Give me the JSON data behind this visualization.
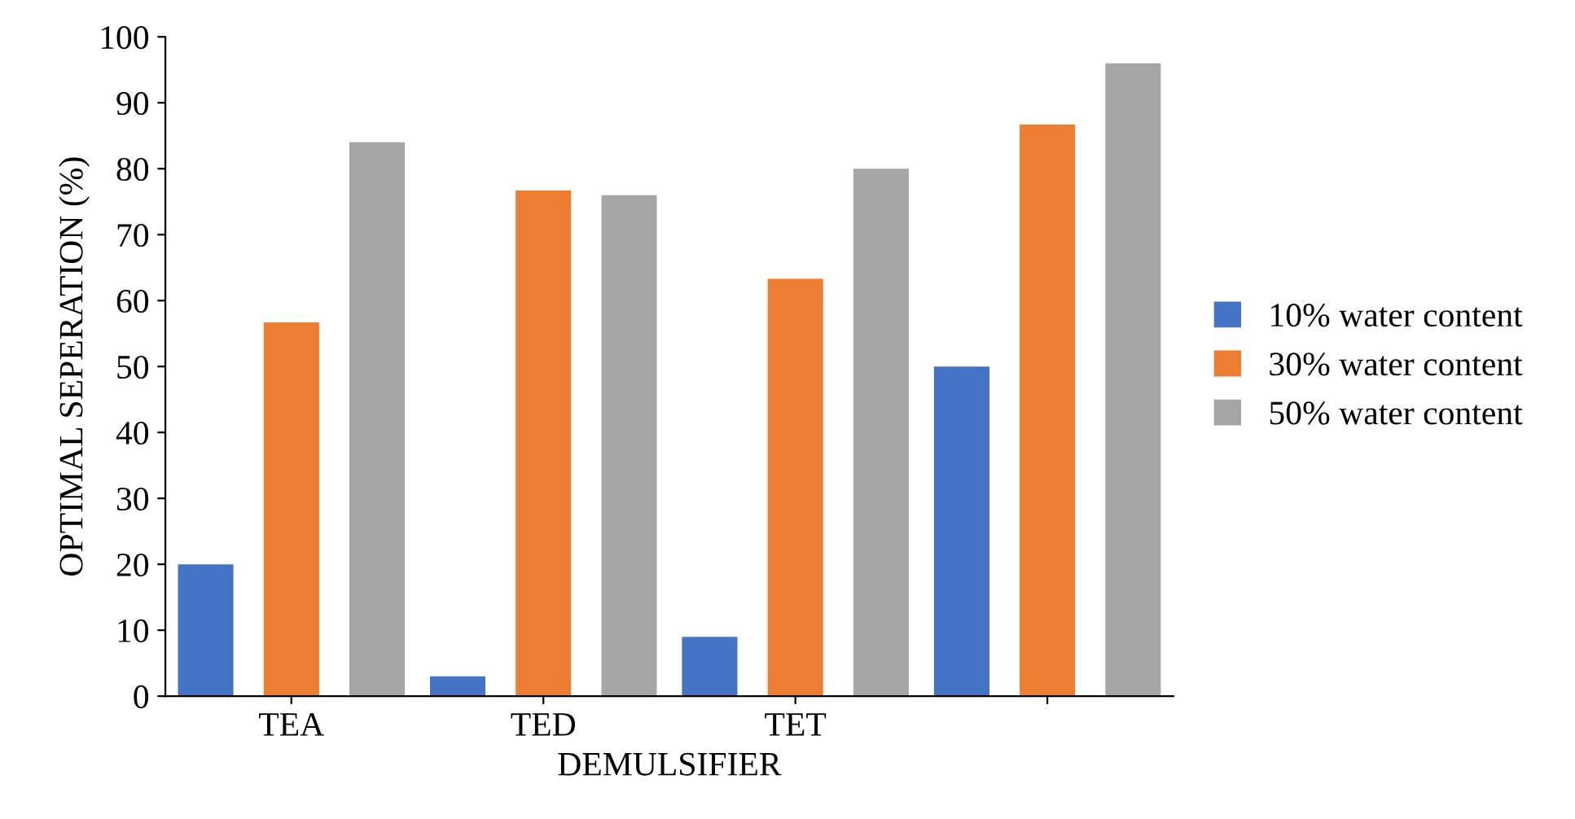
{
  "chart_data": {
    "type": "bar",
    "xlabel": "DEMULSIFIER",
    "ylabel": "OPTIMAL SEPERATION (%)",
    "categories": [
      "TEA",
      "TED",
      "TET",
      null
    ],
    "series": [
      {
        "name": "10% water content",
        "color": "#4472c4",
        "values": [
          20,
          3,
          9,
          50
        ]
      },
      {
        "name": "30% water content",
        "color": "#ed7d31",
        "values": [
          56.7,
          76.7,
          63.3,
          86.7
        ]
      },
      {
        "name": "50% water content",
        "color": "#a5a5a5",
        "values": [
          84,
          76,
          80,
          96
        ]
      }
    ],
    "ylim": [
      0,
      100
    ],
    "yticks": [
      0,
      10,
      20,
      30,
      40,
      50,
      60,
      70,
      80,
      90,
      100
    ],
    "grid": false,
    "legend": "right"
  }
}
